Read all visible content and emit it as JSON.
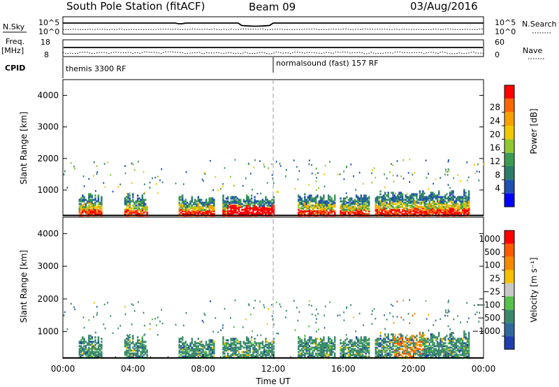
{
  "header": {
    "station": "South Pole Station (fitACF)",
    "beam": "Beam 09",
    "date": "03/Aug/2016"
  },
  "strip": {
    "nsky_label": "N.Sky",
    "nsearch_label": "N.Search",
    "nsky_ticks": [
      "10^5",
      "10^0"
    ],
    "nsearch_ticks": [
      "10^5",
      "10^0"
    ],
    "freq_label_1": "Freq.",
    "freq_label_2": "[MHz]",
    "freq_ticks": [
      "18",
      "8"
    ],
    "nave_label": "Nave",
    "nave_ticks": [
      "60",
      "0"
    ],
    "cpid_label": "CPID",
    "cpid_left": "themis 3300 RF",
    "cpid_right": "normalsound (fast) 157 RF"
  },
  "chart_data": [
    {
      "type": "heatmap",
      "name": "power-panel",
      "ylabel": "Slant Range [km]",
      "ylim": [
        180,
        4500
      ],
      "yticks": [
        "1000",
        "2000",
        "3000",
        "4000"
      ],
      "xlim_hours": [
        0,
        24
      ],
      "colorbar_label": "Power [dB]",
      "colorbar_ticks": [
        "4",
        "8",
        "12",
        "16",
        "20",
        "24",
        "28"
      ],
      "colorbar_colors": [
        "#0000ff",
        "#1f4fb0",
        "#2e7d6a",
        "#3c9b50",
        "#8fc830",
        "#f0c800",
        "#f7a000",
        "#ff6600",
        "#ff0000"
      ]
    },
    {
      "type": "heatmap",
      "name": "velocity-panel",
      "ylabel": "Slant Range [km]",
      "ylim": [
        180,
        4500
      ],
      "yticks": [
        "1000",
        "2000",
        "3000",
        "4000"
      ],
      "xlim_hours": [
        0,
        24
      ],
      "xticks": [
        "00:00",
        "04:00",
        "08:00",
        "12:00",
        "16:00",
        "20:00",
        "00:00"
      ],
      "xlabel": "Time UT",
      "colorbar_label": "Velocity [m s⁻¹]",
      "colorbar_ticks": [
        "1000",
        "500",
        "100",
        "25",
        "−25",
        "−100",
        "−500",
        "−1000"
      ],
      "colorbar_colors": [
        "#1f3fb0",
        "#2f6a9a",
        "#3a8a6a",
        "#55c04a",
        "#c8c8c8",
        "#f5c000",
        "#f58a00",
        "#ff5a00",
        "#ff0000"
      ]
    }
  ]
}
